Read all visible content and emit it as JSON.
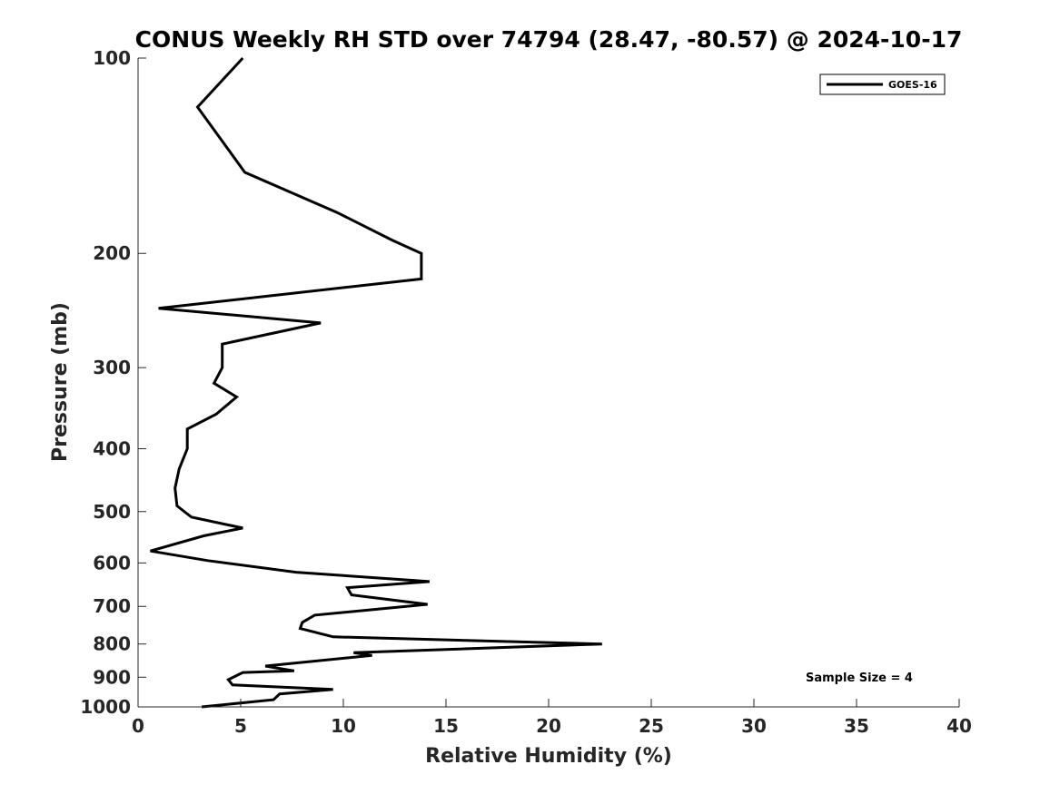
{
  "chart_data": {
    "type": "line",
    "title": "CONUS Weekly RH STD over 74794 (28.47, -80.57) @ 2024-10-17",
    "xlabel": "Relative Humidity (%)",
    "ylabel": "Pressure (mb)",
    "xlim": [
      0,
      40
    ],
    "ylim": [
      1000,
      100
    ],
    "yscale": "log",
    "grid": false,
    "legend_position": "top-right",
    "xticks": [
      0,
      5,
      10,
      15,
      20,
      25,
      30,
      35,
      40
    ],
    "yticks": [
      100,
      200,
      300,
      400,
      500,
      600,
      700,
      800,
      900,
      1000
    ],
    "annotation": "Sample Size = 4",
    "series": [
      {
        "name": "GOES-16",
        "color": "#000000",
        "x": [
          5.1,
          2.9,
          5.2,
          9.7,
          12.4,
          13.8,
          13.8,
          1.0,
          8.9,
          4.1,
          4.1,
          3.7,
          4.8,
          3.8,
          2.4,
          2.4,
          2.0,
          1.8,
          1.9,
          2.6,
          5.1,
          3.2,
          0.6,
          3.4,
          7.7,
          14.2,
          10.2,
          10.4,
          14.1,
          8.6,
          8.0,
          7.9,
          9.5,
          22.6,
          10.5,
          11.4,
          6.2,
          7.6,
          5.1,
          4.4,
          4.6,
          9.5,
          6.9,
          6.6,
          3.1
        ],
        "y": [
          100,
          119,
          150,
          173,
          191,
          200,
          219,
          243,
          256,
          276,
          300,
          317,
          333,
          354,
          373,
          400,
          430,
          460,
          490,
          510,
          530,
          545,
          575,
          595,
          620,
          641,
          655,
          672,
          695,
          722,
          741,
          757,
          780,
          800,
          825,
          833,
          865,
          880,
          885,
          908,
          925,
          940,
          955,
          975,
          1000
        ]
      }
    ]
  }
}
